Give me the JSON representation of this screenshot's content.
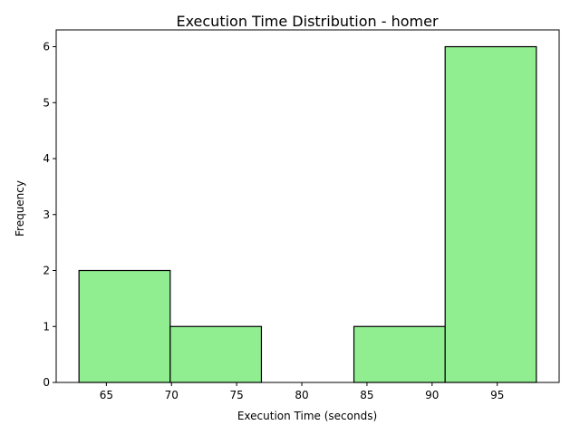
{
  "chart_data": {
    "type": "bar",
    "title": "Execution Time Distribution - homer",
    "xlabel": "Execution Time (seconds)",
    "ylabel": "Frequency",
    "bins": [
      {
        "start": 62.9,
        "end": 69.9,
        "count": 2
      },
      {
        "start": 69.9,
        "end": 76.9,
        "count": 1
      },
      {
        "start": 76.9,
        "end": 84.0,
        "count": 0
      },
      {
        "start": 84.0,
        "end": 91.0,
        "count": 1
      },
      {
        "start": 91.0,
        "end": 98.0,
        "count": 6
      }
    ],
    "xlim": [
      61.15,
      99.75
    ],
    "ylim": [
      0,
      6.3
    ],
    "xticks": [
      65,
      70,
      75,
      80,
      85,
      90,
      95
    ],
    "yticks": [
      0,
      1,
      2,
      3,
      4,
      5,
      6
    ],
    "bar_color": "#90ee90",
    "edge_color": "#000000",
    "grid": false
  }
}
